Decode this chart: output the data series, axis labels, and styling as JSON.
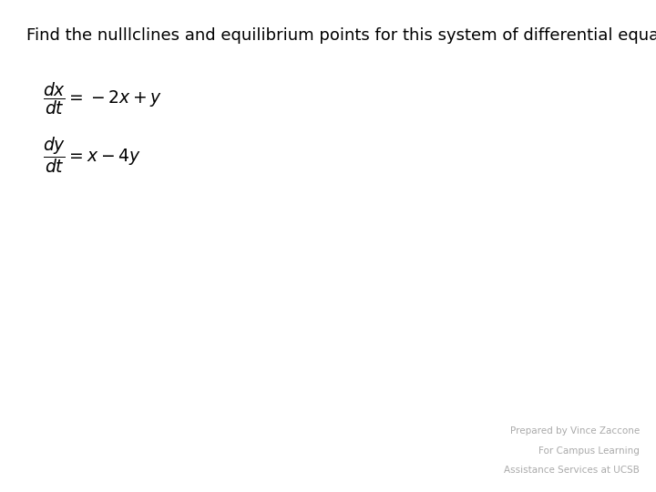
{
  "title": "Find the nulllclines and equilibrium points for this system of differential equations.",
  "title_fontsize": 13.0,
  "footer_line1": "Prepared by Vince Zaccone",
  "footer_line2": "For Campus Learning",
  "footer_line3": "Assistance Services at UCSB",
  "footer_color": "#aaaaaa",
  "footer_fontsize": 7.5,
  "background_color": "#ffffff",
  "text_color": "#000000",
  "eq_fontsize": 13.5
}
